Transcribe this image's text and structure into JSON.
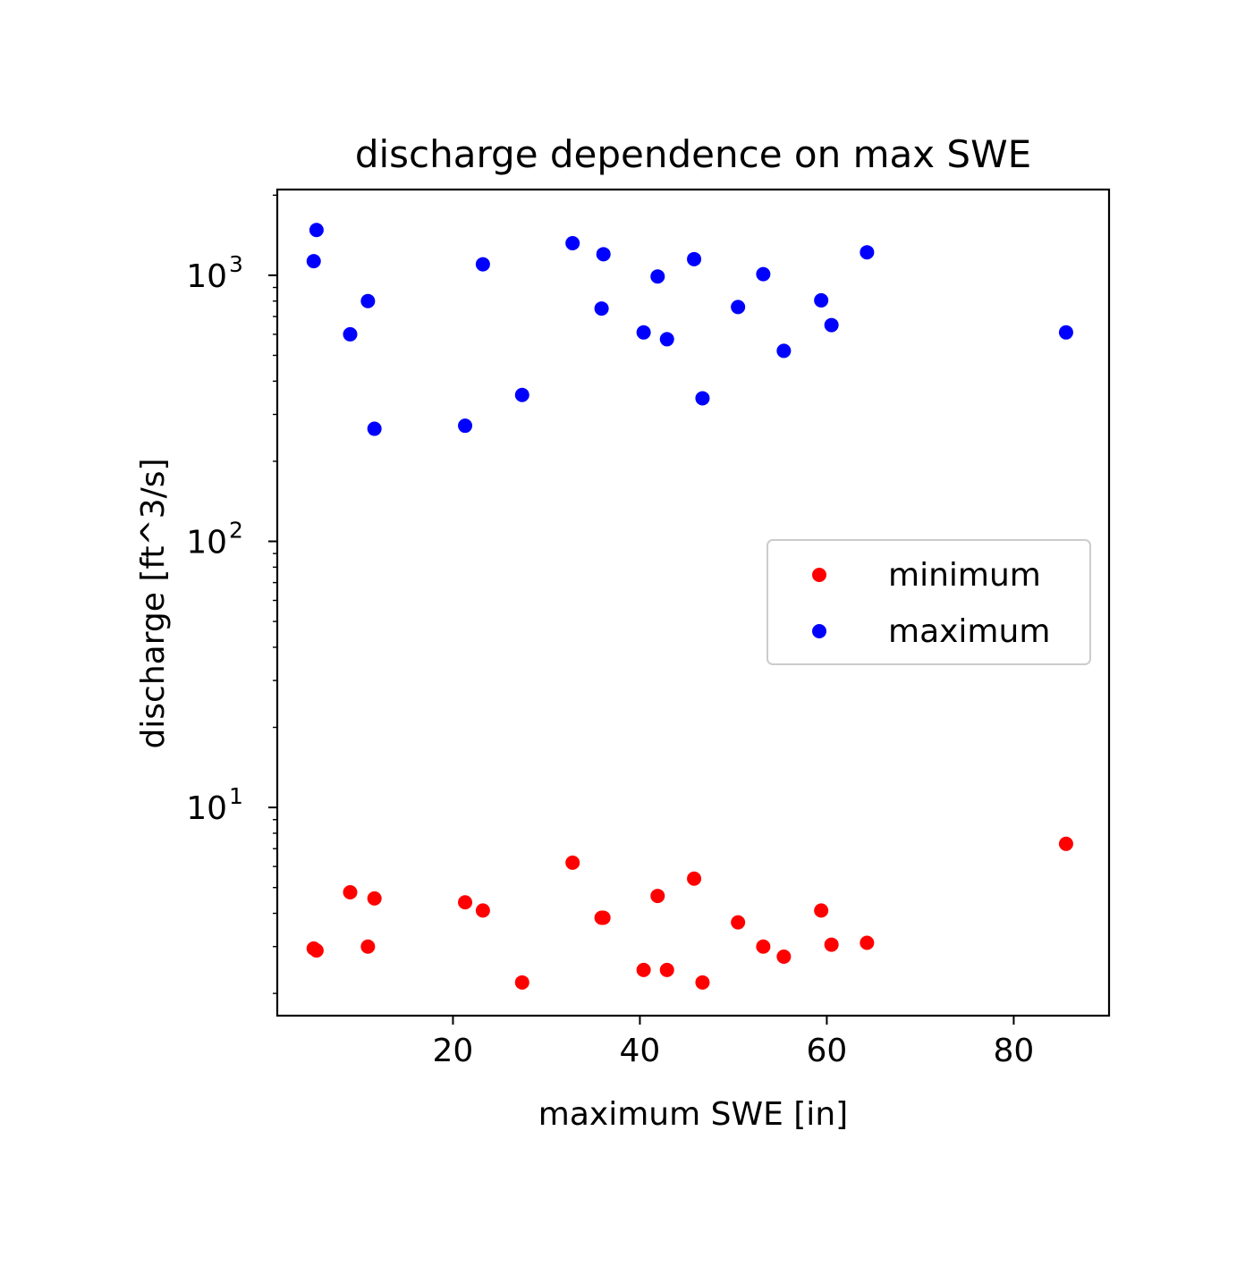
{
  "chart_data": {
    "type": "scatter",
    "title": "discharge dependence on max SWE",
    "xlabel": "maximum SWE [in]",
    "ylabel": "discharge [ft^3/s]",
    "xlim": [
      1.2,
      90.2
    ],
    "ylim": [
      1.65,
      2100
    ],
    "yscale": "log",
    "xticks": [
      20,
      40,
      60,
      80
    ],
    "yticks": [
      {
        "value": 10,
        "base": "10",
        "exp": "1"
      },
      {
        "value": 100,
        "base": "10",
        "exp": "2"
      },
      {
        "value": 1000,
        "base": "10",
        "exp": "3"
      }
    ],
    "grid": false,
    "legend": {
      "position": "center-right"
    },
    "series": [
      {
        "name": "minimum",
        "color": "#ff0000",
        "points": [
          [
            5.1,
            2.95
          ],
          [
            5.4,
            2.9
          ],
          [
            9.0,
            4.8
          ],
          [
            10.9,
            3.0
          ],
          [
            11.6,
            4.55
          ],
          [
            21.3,
            4.4
          ],
          [
            23.2,
            4.1
          ],
          [
            27.4,
            2.2
          ],
          [
            32.8,
            6.2
          ],
          [
            35.9,
            3.85
          ],
          [
            36.1,
            3.85
          ],
          [
            40.4,
            2.45
          ],
          [
            41.9,
            4.65
          ],
          [
            42.9,
            2.45
          ],
          [
            45.8,
            5.4
          ],
          [
            46.7,
            2.2
          ],
          [
            50.5,
            3.7
          ],
          [
            53.2,
            3.0
          ],
          [
            55.4,
            2.75
          ],
          [
            59.4,
            4.1
          ],
          [
            60.5,
            3.05
          ],
          [
            64.3,
            3.1
          ],
          [
            85.6,
            7.3
          ]
        ]
      },
      {
        "name": "maximum",
        "color": "#0000ff",
        "points": [
          [
            5.1,
            1130
          ],
          [
            5.4,
            1480
          ],
          [
            9.0,
            600
          ],
          [
            10.9,
            800
          ],
          [
            11.6,
            265
          ],
          [
            21.3,
            272
          ],
          [
            23.2,
            1100
          ],
          [
            27.4,
            355
          ],
          [
            32.8,
            1320
          ],
          [
            35.9,
            750
          ],
          [
            36.1,
            1200
          ],
          [
            40.4,
            610
          ],
          [
            41.9,
            990
          ],
          [
            42.9,
            575
          ],
          [
            45.8,
            1150
          ],
          [
            46.7,
            345
          ],
          [
            50.5,
            760
          ],
          [
            53.2,
            1010
          ],
          [
            55.4,
            520
          ],
          [
            59.4,
            805
          ],
          [
            60.5,
            650
          ],
          [
            64.3,
            1220
          ],
          [
            85.6,
            610
          ]
        ]
      }
    ]
  }
}
